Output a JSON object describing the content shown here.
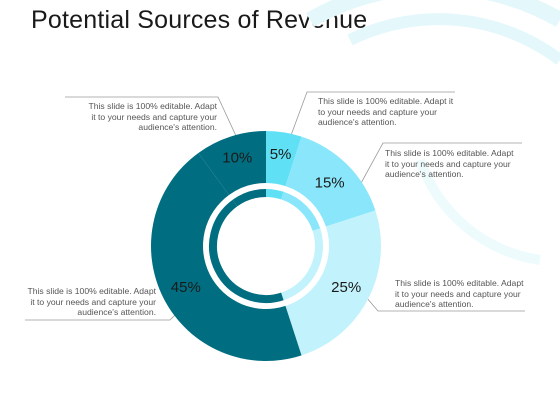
{
  "title": "Potential Sources of Revenue",
  "colors": {
    "dark": "#006e80",
    "light_cyan": "#5fe0f5",
    "sky": "#8ae6fb",
    "pale": "#c2f3fc",
    "deco_arc": "#dff7fb",
    "line": "#9a9a9a"
  },
  "chart_data": {
    "type": "pie",
    "title": "Potential Sources of Revenue",
    "donut": true,
    "slices": [
      {
        "label": "5%",
        "value": 5,
        "color": "#5fe0f5"
      },
      {
        "label": "15%",
        "value": 15,
        "color": "#8ae6fb"
      },
      {
        "label": "25%",
        "value": 25,
        "color": "#c2f3fc"
      },
      {
        "label": "45%",
        "value": 45,
        "color": "#006e80"
      },
      {
        "label": "10%",
        "value": 10,
        "color": "#006e80"
      }
    ]
  },
  "callouts": {
    "top_left": "This slide is 100% editable. Adapt it to your needs and capture your audience's attention.",
    "top_right": "This slide is 100% editable. Adapt it to your needs and capture your audience's attention.",
    "mid_right": "This slide is 100% editable. Adapt it to your needs and capture your audience's attention.",
    "bottom_right": "This slide is 100% editable. Adapt it to your needs and capture your audience's attention.",
    "bottom_left": "This slide is 100% editable. Adapt it to your needs and capture your audience's attention."
  }
}
